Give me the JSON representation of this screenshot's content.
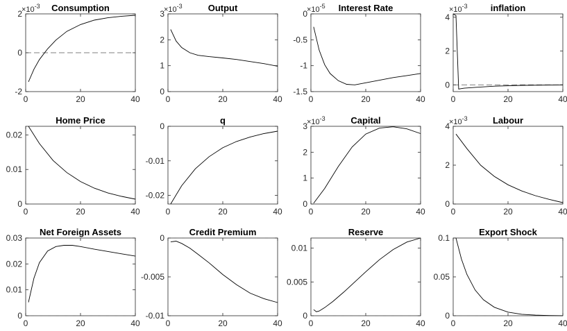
{
  "chart_data": [
    {
      "type": "line",
      "title": "Consumption",
      "exponent": "-3",
      "x": [
        1,
        3,
        5,
        8,
        11,
        15,
        20,
        25,
        30,
        35,
        40
      ],
      "y": [
        -1.5,
        -0.85,
        -0.35,
        0.2,
        0.65,
        1.1,
        1.45,
        1.68,
        1.8,
        1.88,
        1.93
      ],
      "zero_line": true,
      "xlim": [
        0,
        40
      ],
      "ylim": [
        -2,
        2
      ],
      "xticks": [
        0,
        20,
        40
      ],
      "yticks": [
        -2,
        0,
        2
      ],
      "xticklabels": [
        "0",
        "20",
        "40"
      ],
      "yticklabels": [
        "-2",
        "0",
        "2"
      ]
    },
    {
      "type": "line",
      "title": "Output",
      "exponent": "-3",
      "x": [
        1,
        3,
        5,
        8,
        11,
        15,
        20,
        25,
        30,
        35,
        40
      ],
      "y": [
        2.4,
        1.95,
        1.7,
        1.5,
        1.4,
        1.35,
        1.3,
        1.24,
        1.16,
        1.08,
        0.98
      ],
      "zero_line": false,
      "xlim": [
        0,
        40
      ],
      "ylim": [
        0,
        3
      ],
      "xticks": [
        0,
        20,
        40
      ],
      "yticks": [
        0,
        1,
        2,
        3
      ],
      "xticklabels": [
        "0",
        "20",
        "40"
      ],
      "yticklabels": [
        "0",
        "1",
        "2",
        "3"
      ]
    },
    {
      "type": "line",
      "title": "Interest Rate",
      "exponent": "-5",
      "x": [
        1,
        3,
        5,
        7,
        10,
        13,
        16,
        20,
        25,
        30,
        35,
        40
      ],
      "y": [
        -0.25,
        -0.7,
        -0.98,
        -1.15,
        -1.29,
        -1.36,
        -1.37,
        -1.33,
        -1.28,
        -1.23,
        -1.19,
        -1.15
      ],
      "zero_line": false,
      "xlim": [
        0,
        40
      ],
      "ylim": [
        -1.5,
        0
      ],
      "xticks": [
        0,
        20,
        40
      ],
      "yticks": [
        -1.5,
        -1,
        -0.5,
        0
      ],
      "xticklabels": [
        "0",
        "20",
        "40"
      ],
      "yticklabels": [
        "-1.5",
        "-1",
        "-0.5",
        "0"
      ]
    },
    {
      "type": "line",
      "title": "inflation",
      "exponent": "-3",
      "x": [
        0,
        1,
        2,
        4,
        8,
        15,
        25,
        40
      ],
      "y": [
        4.2,
        4.1,
        -0.25,
        -0.2,
        -0.15,
        -0.08,
        -0.03,
        0.0
      ],
      "zero_line": true,
      "xlim": [
        0,
        40
      ],
      "ylim": [
        -0.4,
        4.2
      ],
      "xticks": [
        0,
        20,
        40
      ],
      "yticks": [
        0,
        2,
        4
      ],
      "xticklabels": [
        "0",
        "20",
        "40"
      ],
      "yticklabels": [
        "0",
        "2",
        "4"
      ]
    },
    {
      "type": "line",
      "title": "Home Price",
      "exponent": "",
      "x": [
        1,
        5,
        10,
        15,
        20,
        25,
        30,
        35,
        40
      ],
      "y": [
        0.0225,
        0.0175,
        0.0126,
        0.0091,
        0.0065,
        0.0046,
        0.0032,
        0.0022,
        0.0014
      ],
      "zero_line": false,
      "xlim": [
        0,
        40
      ],
      "ylim": [
        0,
        0.0225
      ],
      "xticks": [
        0,
        20,
        40
      ],
      "yticks": [
        0,
        0.01,
        0.02
      ],
      "xticklabels": [
        "0",
        "20",
        "40"
      ],
      "yticklabels": [
        "0",
        "0.01",
        "0.02"
      ]
    },
    {
      "type": "line",
      "title": "q",
      "exponent": "",
      "x": [
        1,
        5,
        10,
        15,
        20,
        25,
        30,
        35,
        40
      ],
      "y": [
        -0.0225,
        -0.0172,
        -0.0123,
        -0.0088,
        -0.0062,
        -0.0044,
        -0.0031,
        -0.0021,
        -0.0014
      ],
      "zero_line": false,
      "xlim": [
        0,
        40
      ],
      "ylim": [
        -0.0225,
        0
      ],
      "xticks": [
        0,
        20,
        40
      ],
      "yticks": [
        -0.02,
        -0.01,
        0
      ],
      "xticklabels": [
        "0",
        "20",
        "40"
      ],
      "yticklabels": [
        "-0.02",
        "-0.01",
        "0"
      ]
    },
    {
      "type": "line",
      "title": "Capital",
      "exponent": "-3",
      "x": [
        1,
        5,
        10,
        15,
        20,
        25,
        30,
        35,
        40
      ],
      "y": [
        0.03,
        0.6,
        1.45,
        2.2,
        2.7,
        2.93,
        2.98,
        2.9,
        2.72
      ],
      "zero_line": false,
      "xlim": [
        0,
        40
      ],
      "ylim": [
        0,
        3
      ],
      "xticks": [
        0,
        20,
        40
      ],
      "yticks": [
        0,
        1,
        2,
        3
      ],
      "xticklabels": [
        "0",
        "20",
        "40"
      ],
      "yticklabels": [
        "0",
        "1",
        "2",
        "3"
      ]
    },
    {
      "type": "line",
      "title": "Labour",
      "exponent": "-3",
      "x": [
        1,
        5,
        10,
        15,
        20,
        25,
        30,
        35,
        40
      ],
      "y": [
        3.6,
        2.85,
        2.0,
        1.42,
        0.99,
        0.67,
        0.43,
        0.24,
        0.07
      ],
      "zero_line": false,
      "xlim": [
        0,
        40
      ],
      "ylim": [
        0,
        4
      ],
      "xticks": [
        0,
        20,
        40
      ],
      "yticks": [
        0,
        2,
        4
      ],
      "xticklabels": [
        "0",
        "20",
        "40"
      ],
      "yticklabels": [
        "0",
        "2",
        "4"
      ]
    },
    {
      "type": "line",
      "title": "Net Foreign Assets",
      "exponent": "",
      "x": [
        1,
        3,
        5,
        8,
        11,
        14,
        17,
        20,
        25,
        30,
        35,
        40
      ],
      "y": [
        0.0052,
        0.0145,
        0.0205,
        0.025,
        0.0267,
        0.0272,
        0.0272,
        0.0267,
        0.0257,
        0.0248,
        0.0239,
        0.023
      ],
      "zero_line": true,
      "xlim": [
        0,
        40
      ],
      "ylim": [
        0,
        0.03
      ],
      "xticks": [
        0,
        20,
        40
      ],
      "yticks": [
        0,
        0.01,
        0.02,
        0.03
      ],
      "xticklabels": [
        "0",
        "20",
        "40"
      ],
      "yticklabels": [
        "0",
        "0.01",
        "0.02",
        "0.03"
      ]
    },
    {
      "type": "line",
      "title": "Credit Premium",
      "exponent": "",
      "x": [
        1,
        3,
        5,
        8,
        11,
        15,
        20,
        25,
        30,
        35,
        40
      ],
      "y": [
        -0.0005,
        -0.0004,
        -0.0007,
        -0.0013,
        -0.0021,
        -0.0032,
        -0.0047,
        -0.006,
        -0.0071,
        -0.0078,
        -0.0083
      ],
      "zero_line": true,
      "xlim": [
        0,
        40
      ],
      "ylim": [
        -0.01,
        0
      ],
      "xticks": [
        0,
        20,
        40
      ],
      "yticks": [
        -0.01,
        -0.005,
        0
      ],
      "xticklabels": [
        "0",
        "20",
        "40"
      ],
      "yticklabels": [
        "-0.01",
        "-0.005",
        "0"
      ]
    },
    {
      "type": "line",
      "title": "Reserve",
      "exponent": "",
      "x": [
        1,
        2,
        3,
        5,
        8,
        12,
        16,
        20,
        25,
        30,
        35,
        40
      ],
      "y": [
        0.0009,
        0.0006,
        0.0007,
        0.0012,
        0.0021,
        0.0035,
        0.005,
        0.0065,
        0.0083,
        0.0098,
        0.0109,
        0.0115
      ],
      "zero_line": true,
      "xlim": [
        0,
        40
      ],
      "ylim": [
        0,
        0.0115
      ],
      "xticks": [
        0,
        20,
        40
      ],
      "yticks": [
        0,
        0.005,
        0.01
      ],
      "xticklabels": [
        "0",
        "20",
        "40"
      ],
      "yticklabels": [
        "0",
        "0.005",
        "0.01"
      ]
    },
    {
      "type": "line",
      "title": "Export Shock",
      "exponent": "",
      "x": [
        1,
        3,
        5,
        8,
        11,
        15,
        20,
        25,
        30,
        35,
        40
      ],
      "y": [
        0.1,
        0.0729,
        0.0531,
        0.0331,
        0.0206,
        0.0109,
        0.0046,
        0.0019,
        0.0008,
        0.0003,
        0.0001
      ],
      "zero_line": true,
      "xlim": [
        0,
        40
      ],
      "ylim": [
        0,
        0.1
      ],
      "xticks": [
        0,
        20,
        40
      ],
      "yticks": [
        0,
        0.05,
        0.1
      ],
      "xticklabels": [
        "0",
        "20",
        "40"
      ],
      "yticklabels": [
        "0",
        "0.05",
        "0.1"
      ]
    }
  ]
}
